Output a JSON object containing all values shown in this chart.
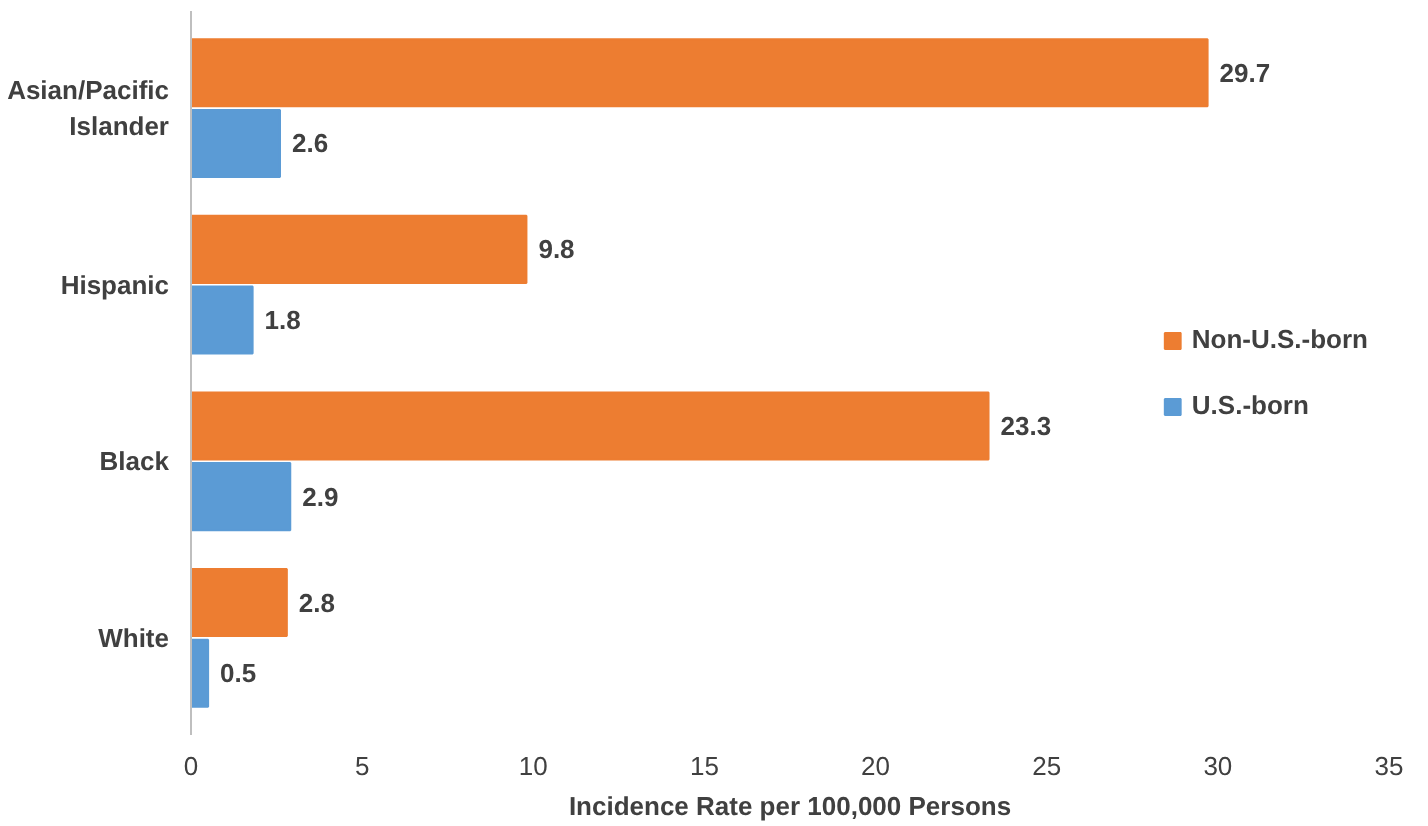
{
  "chart_data": {
    "type": "bar",
    "orientation": "horizontal",
    "categories": [
      "Asian/Pacific Islander",
      "Hispanic",
      "Black",
      "White"
    ],
    "series": [
      {
        "name": "Non-U.S.-born",
        "color": "#ed7d31",
        "values": [
          29.7,
          9.8,
          23.3,
          2.8
        ]
      },
      {
        "name": "U.S.-born",
        "color": "#5b9bd5",
        "values": [
          2.6,
          1.8,
          2.9,
          0.5
        ]
      }
    ],
    "xlabel": "Incidence Rate per 100,000 Persons",
    "xlim": [
      0,
      35
    ],
    "xticks": [
      0,
      5,
      10,
      15,
      20,
      25,
      30,
      35
    ],
    "data_labels": true,
    "grid": false,
    "legend": "right"
  }
}
